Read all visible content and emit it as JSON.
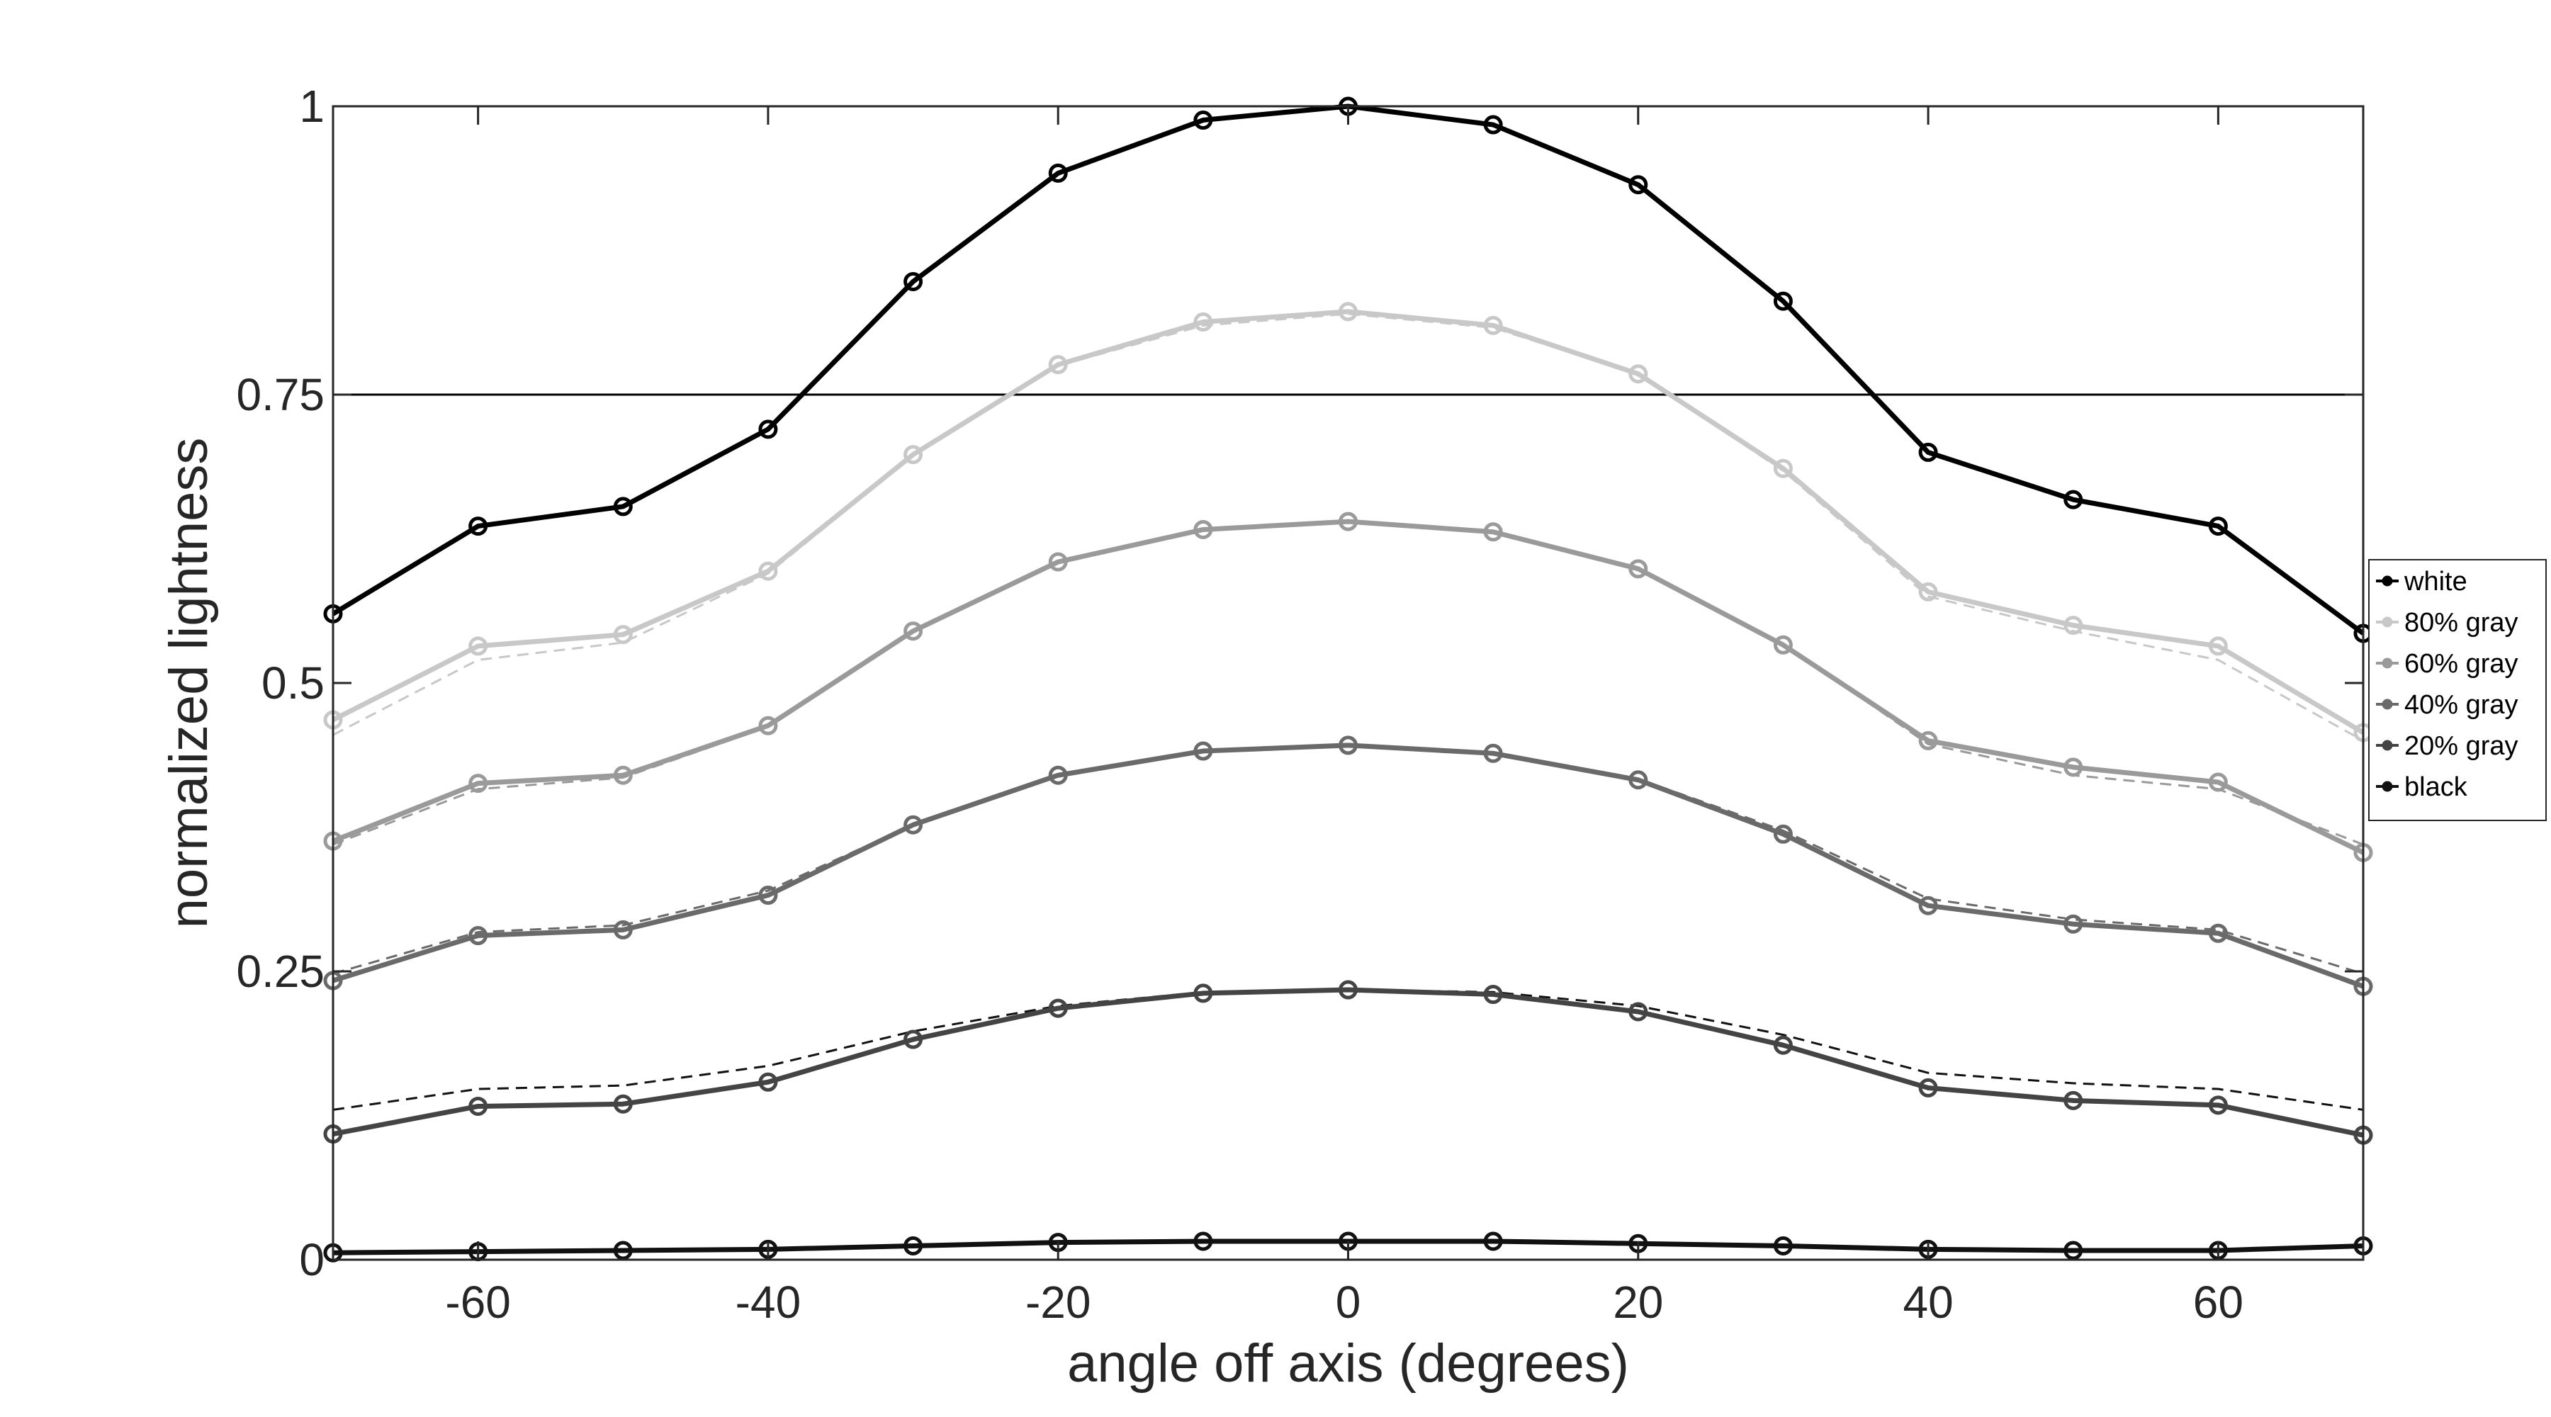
{
  "chart_data": {
    "type": "line",
    "title": "",
    "xlabel": "angle off axis (degrees)",
    "ylabel": "normalized lightness",
    "xlim": [
      -70,
      70
    ],
    "ylim": [
      0,
      1
    ],
    "x": [
      -70,
      -60,
      -50,
      -40,
      -30,
      -20,
      -10,
      0,
      10,
      20,
      30,
      40,
      50,
      60,
      70
    ],
    "xticks": [
      -60,
      -40,
      -20,
      0,
      20,
      40,
      60
    ],
    "xtick_labels": [
      "-60",
      "-40",
      "-20",
      "0",
      "20",
      "40",
      "60"
    ],
    "yticks": [
      0,
      0.25,
      0.5,
      0.75,
      1
    ],
    "ytick_labels": [
      "0",
      "0.25",
      "0.5",
      "0.75",
      "1"
    ],
    "grid": false,
    "legend_position": "right, outside plot area",
    "reference_line": {
      "y": 0.75,
      "color": "#000000"
    },
    "series": [
      {
        "name": "white",
        "color": "#000000",
        "values": [
          0.56,
          0.636,
          0.653,
          0.72,
          0.848,
          0.942,
          0.988,
          1.0,
          0.984,
          0.932,
          0.831,
          0.7,
          0.659,
          0.636,
          0.543
        ]
      },
      {
        "name": "80% gray",
        "color": "#c8c8c8",
        "values": [
          0.468,
          0.532,
          0.542,
          0.597,
          0.698,
          0.776,
          0.813,
          0.822,
          0.81,
          0.768,
          0.686,
          0.579,
          0.55,
          0.532,
          0.457
        ]
      },
      {
        "name": "60% gray",
        "color": "#9a9a9a",
        "values": [
          0.363,
          0.413,
          0.42,
          0.463,
          0.545,
          0.605,
          0.633,
          0.64,
          0.631,
          0.599,
          0.533,
          0.45,
          0.427,
          0.414,
          0.353
        ]
      },
      {
        "name": "40% gray",
        "color": "#6a6a6a",
        "values": [
          0.242,
          0.281,
          0.286,
          0.316,
          0.377,
          0.42,
          0.441,
          0.446,
          0.439,
          0.416,
          0.369,
          0.307,
          0.291,
          0.283,
          0.237
        ]
      },
      {
        "name": "20% gray",
        "color": "#444444",
        "values": [
          0.109,
          0.133,
          0.135,
          0.154,
          0.191,
          0.218,
          0.231,
          0.234,
          0.23,
          0.215,
          0.186,
          0.149,
          0.138,
          0.134,
          0.108
        ]
      },
      {
        "name": "black",
        "color": "#111111",
        "values": [
          0.006,
          0.007,
          0.008,
          0.009,
          0.012,
          0.015,
          0.016,
          0.016,
          0.016,
          0.014,
          0.012,
          0.009,
          0.008,
          0.008,
          0.012
        ]
      }
    ],
    "reference_series": [
      {
        "color": "#c8c8c8",
        "values": [
          0.455,
          0.52,
          0.535,
          0.595,
          0.697,
          0.775,
          0.81,
          0.82,
          0.808,
          0.768,
          0.684,
          0.575,
          0.545,
          0.52,
          0.45
        ]
      },
      {
        "color": "#9a9a9a",
        "values": [
          0.36,
          0.408,
          0.418,
          0.462,
          0.545,
          0.605,
          0.633,
          0.64,
          0.632,
          0.599,
          0.534,
          0.447,
          0.42,
          0.408,
          0.36
        ]
      },
      {
        "color": "#6a6a6a",
        "values": [
          0.248,
          0.284,
          0.29,
          0.32,
          0.377,
          0.42,
          0.441,
          0.446,
          0.44,
          0.417,
          0.372,
          0.313,
          0.295,
          0.286,
          0.248
        ]
      },
      {
        "color": "#111111",
        "values": [
          0.13,
          0.148,
          0.151,
          0.168,
          0.198,
          0.22,
          0.232,
          0.234,
          0.232,
          0.22,
          0.195,
          0.162,
          0.153,
          0.148,
          0.13
        ]
      }
    ]
  }
}
